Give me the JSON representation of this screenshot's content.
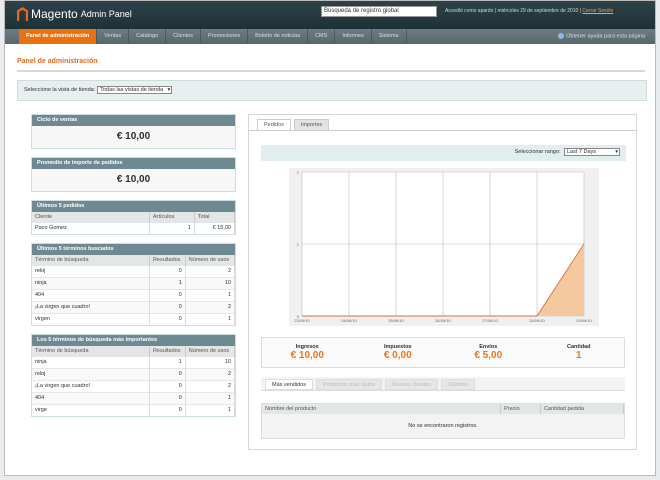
{
  "header": {
    "logo": "Magento",
    "logo_sub": "Admin Panel",
    "search_value": "Búsqueda de registro global",
    "logged_in": "Accedió como apardo",
    "date": "miércoles 29 de septiembre de 2010",
    "logout": "Cerrar Sesión"
  },
  "nav": {
    "items": [
      "Panel de administración",
      "Ventas",
      "Catálogo",
      "Clientes",
      "Promociones",
      "Boletín de noticias",
      "CMS",
      "Informes",
      "Sistema"
    ],
    "active": 0,
    "help": "Obtener ayuda para esta página"
  },
  "page": {
    "title": "Panel de administración",
    "store_label": "Seleccione la vista de tienda:",
    "store_value": "Todas las vistas de tienda"
  },
  "lifetime": {
    "title": "Ciclo de ventas",
    "value": "€ 10,00"
  },
  "average": {
    "title": "Promedio de importe de pedidos",
    "value": "€ 10,00"
  },
  "last_orders": {
    "title": "Últimos 5 pedidos",
    "columns": [
      "Cliente",
      "Artículos",
      "Total"
    ],
    "rows": [
      [
        "Paco Gomez",
        "1",
        "€ 15,00"
      ]
    ]
  },
  "last_search": {
    "title": "Últimos 5 términos buscados",
    "columns": [
      "Término de búsqueda",
      "Resultados",
      "Número de usos"
    ],
    "rows": [
      [
        "reloj",
        "0",
        "2"
      ],
      [
        "ninja",
        "1",
        "10"
      ],
      [
        "404",
        "0",
        "1"
      ],
      [
        "¡La virgen que cuadro!",
        "0",
        "2"
      ],
      [
        "virgen",
        "0",
        "1"
      ]
    ]
  },
  "top_search": {
    "title": "Los 5 términos de búsqueda más importantes",
    "columns": [
      "Término de búsqueda",
      "Resultados",
      "Número de usos"
    ],
    "rows": [
      [
        "ninja",
        "1",
        "10"
      ],
      [
        "reloj",
        "0",
        "2"
      ],
      [
        "¡La virgen que cuadro!",
        "0",
        "2"
      ],
      [
        "404",
        "0",
        "1"
      ],
      [
        "virge",
        "0",
        "1"
      ]
    ]
  },
  "chart_tabs": [
    "Pedidos",
    "Importes"
  ],
  "range": {
    "label": "Seleccionar rango:",
    "value": "Last 7 Days"
  },
  "chart_data": {
    "type": "area",
    "x": [
      "23/09/10",
      "24/09/10",
      "25/09/10",
      "26/09/10",
      "27/09/10",
      "28/09/10",
      "29/09/10"
    ],
    "values": [
      0,
      0,
      0,
      0,
      0,
      0,
      1
    ],
    "ylim": [
      0,
      2
    ],
    "yticks": [
      "0",
      "1",
      "2"
    ],
    "grid": true,
    "color": "#f5c9a0",
    "line_color": "#d9703a"
  },
  "totals": [
    {
      "label": "Ingresos",
      "value": "€ 10,00"
    },
    {
      "label": "Impuestos",
      "value": "€ 0,00"
    },
    {
      "label": "Envíos",
      "value": "€ 5,00"
    },
    {
      "label": "Cantidad",
      "value": "1"
    }
  ],
  "bottom_tabs": [
    "Más vendidos",
    "Productos más vistos",
    "Nuevos clientes",
    "Clientes"
  ],
  "products": {
    "columns": [
      "Nombre del producto",
      "Precio",
      "Cantidad pedida"
    ],
    "empty": "No se encontraron registros."
  }
}
